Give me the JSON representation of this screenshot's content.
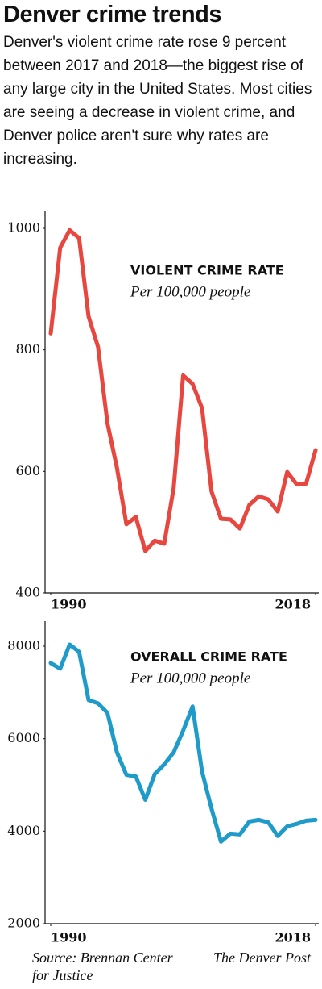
{
  "title": "Denver crime trends",
  "subtitle": "Denver's violent crime rate rose 9 percent between 2017 and 2018—the biggest rise of any large city in the United States. Most cities are seeing a decrease in violent crime, and Denver police aren't sure why rates are increasing.",
  "chart_data": [
    {
      "type": "line",
      "title": "VIOLENT CRIME RATE",
      "subtitle": "Per 100,000 people",
      "color": "#e8473f",
      "x": [
        1990,
        1991,
        1992,
        1993,
        1994,
        1995,
        1996,
        1997,
        1998,
        1999,
        2000,
        2001,
        2002,
        2003,
        2004,
        2005,
        2006,
        2007,
        2008,
        2009,
        2010,
        2011,
        2012,
        2013,
        2014,
        2015,
        2016,
        2017,
        2018
      ],
      "values": [
        827,
        968,
        997,
        984,
        855,
        805,
        679,
        606,
        513,
        525,
        469,
        486,
        481,
        573,
        758,
        744,
        704,
        567,
        522,
        521,
        506,
        545,
        559,
        554,
        534,
        599,
        579,
        580,
        635
      ],
      "xlim": [
        1990,
        2018
      ],
      "xticks": [
        1990,
        2018
      ],
      "ylim": [
        400,
        1000
      ],
      "yticks": [
        400,
        600,
        800,
        1000
      ]
    },
    {
      "type": "line",
      "title": "OVERALL CRIME RATE",
      "subtitle": "Per 100,000 people",
      "color": "#1f9bc9",
      "x": [
        1990,
        1991,
        1992,
        1993,
        1994,
        1995,
        1996,
        1997,
        1998,
        1999,
        2000,
        2001,
        2002,
        2003,
        2004,
        2005,
        2006,
        2007,
        2008,
        2009,
        2010,
        2011,
        2012,
        2013,
        2014,
        2015,
        2016,
        2017,
        2018
      ],
      "values": [
        7635,
        7513,
        8035,
        7878,
        6835,
        6765,
        6557,
        5704,
        5217,
        5183,
        4678,
        5235,
        5443,
        5704,
        6174,
        6696,
        5287,
        4487,
        3774,
        3948,
        3930,
        4209,
        4243,
        4191,
        3896,
        4104,
        4157,
        4226,
        4243
      ],
      "xlim": [
        1990,
        2018
      ],
      "xticks": [
        1990,
        2018
      ],
      "ylim": [
        2000,
        8000
      ],
      "yticks": [
        2000,
        4000,
        6000,
        8000
      ]
    }
  ],
  "source": "Source: Brennan Center for Justice",
  "credit": "The Denver Post"
}
